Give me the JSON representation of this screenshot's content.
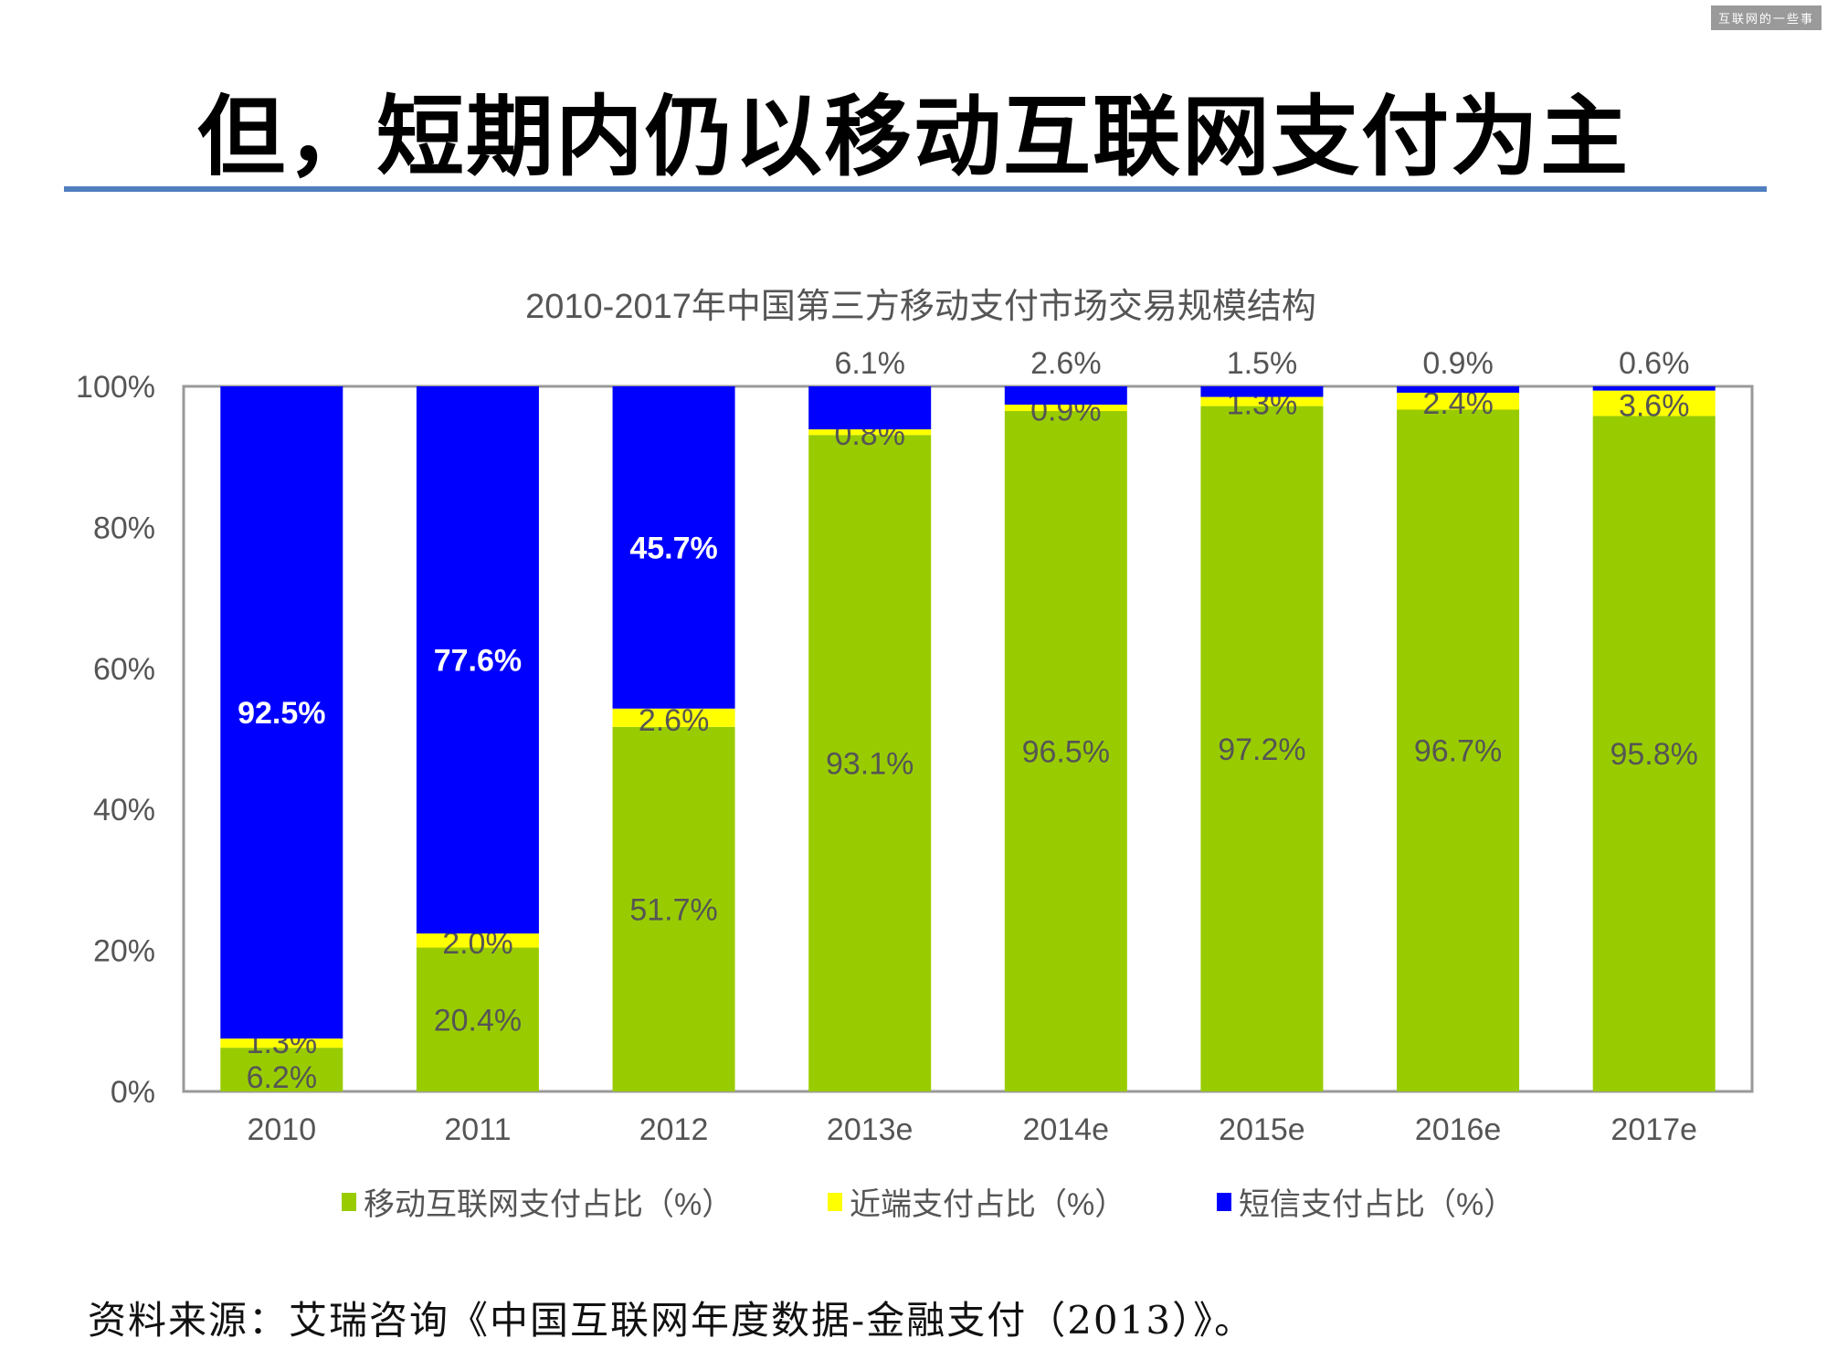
{
  "watermark": "互联网的一些事",
  "slide_title": "但，短期内仍以移动互联网支付为主",
  "source": "资料来源：艾瑞咨询《中国互联网年度数据-金融支付（2013）》。",
  "chart_data": {
    "type": "bar",
    "stacked": true,
    "title": "2010-2017年中国第三方移动支付市场交易规模结构",
    "categories": [
      "2010",
      "2011",
      "2012",
      "2013e",
      "2014e",
      "2015e",
      "2016e",
      "2017e"
    ],
    "series": [
      {
        "name": "移动互联网支付占比（%）",
        "color": "#99cc00",
        "values": [
          6.2,
          20.4,
          51.7,
          93.1,
          96.5,
          97.2,
          96.7,
          95.8
        ]
      },
      {
        "name": "近端支付占比（%）",
        "color": "#ffff00",
        "values": [
          1.3,
          2.0,
          2.6,
          0.8,
          0.9,
          1.3,
          2.4,
          3.6
        ]
      },
      {
        "name": "短信支付占比（%）",
        "color": "#0000ff",
        "values": [
          92.5,
          77.6,
          45.7,
          6.1,
          2.6,
          1.5,
          0.9,
          0.6
        ]
      }
    ],
    "data_labels": [
      [
        "6.2%",
        "20.4%",
        "51.7%",
        "93.1%",
        "96.5%",
        "97.2%",
        "96.7%",
        "95.8%"
      ],
      [
        "1.3%",
        "2.0%",
        "2.6%",
        "0.8%",
        "0.9%",
        "1.3%",
        "2.4%",
        "3.6%"
      ],
      [
        "92.5%",
        "77.6%",
        "45.7%",
        "6.1%",
        "2.6%",
        "1.5%",
        "0.9%",
        "0.6%"
      ]
    ],
    "yticks": [
      "0%",
      "20%",
      "40%",
      "60%",
      "80%",
      "100%"
    ],
    "ylim": [
      0,
      100
    ],
    "legend_position": "bottom",
    "grid": false
  }
}
